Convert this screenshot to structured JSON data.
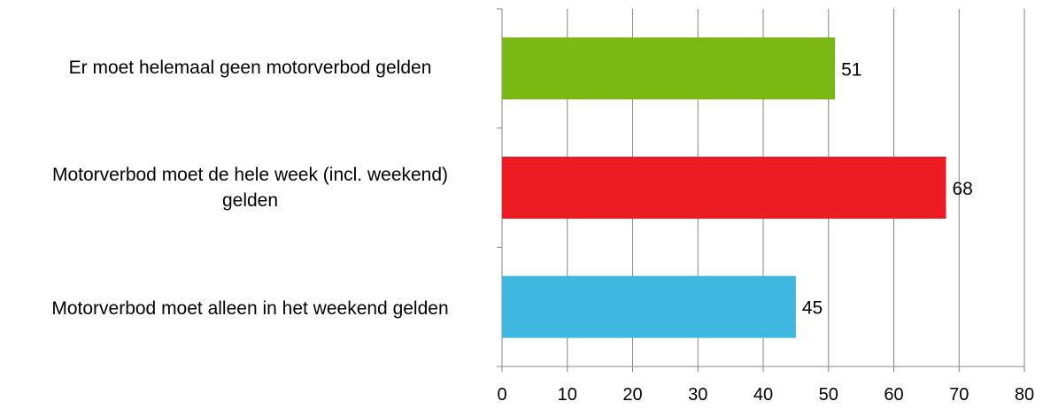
{
  "chart_data": {
    "type": "bar",
    "orientation": "horizontal",
    "categories": [
      "Er moet helemaal geen motorverbod gelden",
      "Motorverbod moet de hele week (incl. weekend) gelden",
      "Motorverbod moet alleen in het weekend gelden"
    ],
    "category_lines": [
      [
        "Er moet helemaal geen motorverbod gelden"
      ],
      [
        "Motorverbod moet de hele week (incl. weekend)",
        "gelden"
      ],
      [
        "Motorverbod moet alleen in het weekend gelden"
      ]
    ],
    "values": [
      51,
      68,
      45
    ],
    "data_labels": [
      "51",
      "68",
      "45"
    ],
    "bar_colors": [
      "#7ab913",
      "#ed1c24",
      "#3eb8e0"
    ],
    "xlim": [
      0,
      80
    ],
    "x_ticks": [
      0,
      10,
      20,
      30,
      40,
      50,
      60,
      70,
      80
    ],
    "x_tick_labels": [
      "0",
      "10",
      "20",
      "30",
      "40",
      "50",
      "60",
      "70",
      "80"
    ],
    "grid": true,
    "legend": "none"
  }
}
